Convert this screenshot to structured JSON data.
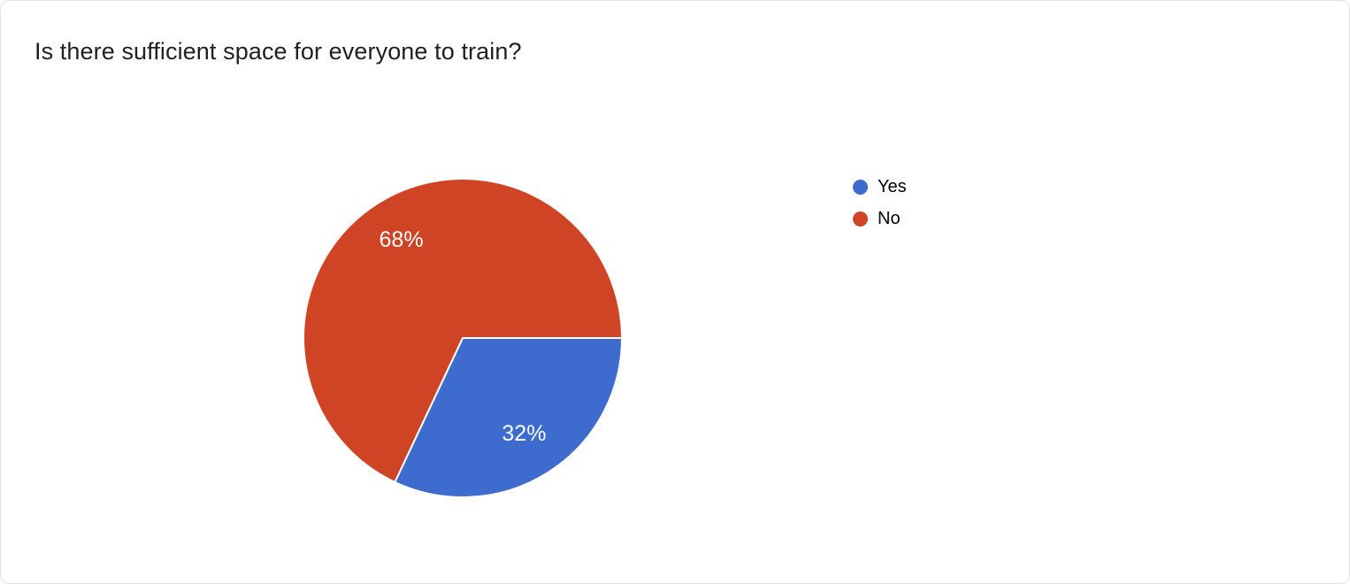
{
  "chart_data": {
    "type": "pie",
    "title": "Is there sufficient space for everyone to train?",
    "labels": [
      "Yes",
      "No"
    ],
    "values": [
      32,
      68
    ],
    "value_labels": [
      "32%",
      "68%"
    ],
    "colors": [
      "#3D6BCE",
      "#CF4425"
    ],
    "legend_position": "right",
    "start_angle_deg": 0,
    "slice_border_color": "#ffffff"
  }
}
